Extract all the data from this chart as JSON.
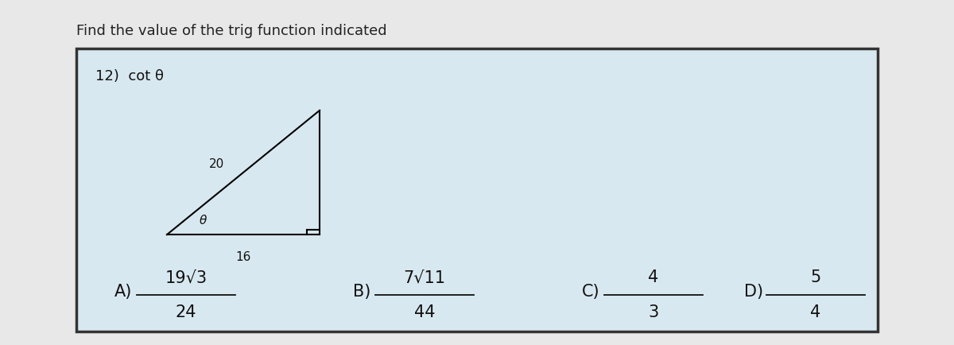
{
  "title": "Find the value of the trig function indicated",
  "problem_number": "12)",
  "problem_text": "cot θ",
  "triangle": {
    "hyp_label": "20",
    "base_label": "16",
    "angle_label": "θ"
  },
  "answers": [
    {
      "label": "A)",
      "num": "19√3",
      "den": "24"
    },
    {
      "label": "B)",
      "num": "7√11",
      "den": "44"
    },
    {
      "label": "C)",
      "num": "4",
      "den": "3"
    },
    {
      "label": "D)",
      "num": "5",
      "den": "4"
    }
  ],
  "box_bg": "#d8e8f0",
  "outer_bg": "#e8e8e8",
  "box_edge": "#333333",
  "title_color": "#222222",
  "text_color": "#111111",
  "title_fontsize": 13,
  "problem_fontsize": 13,
  "answer_fontsize": 15
}
